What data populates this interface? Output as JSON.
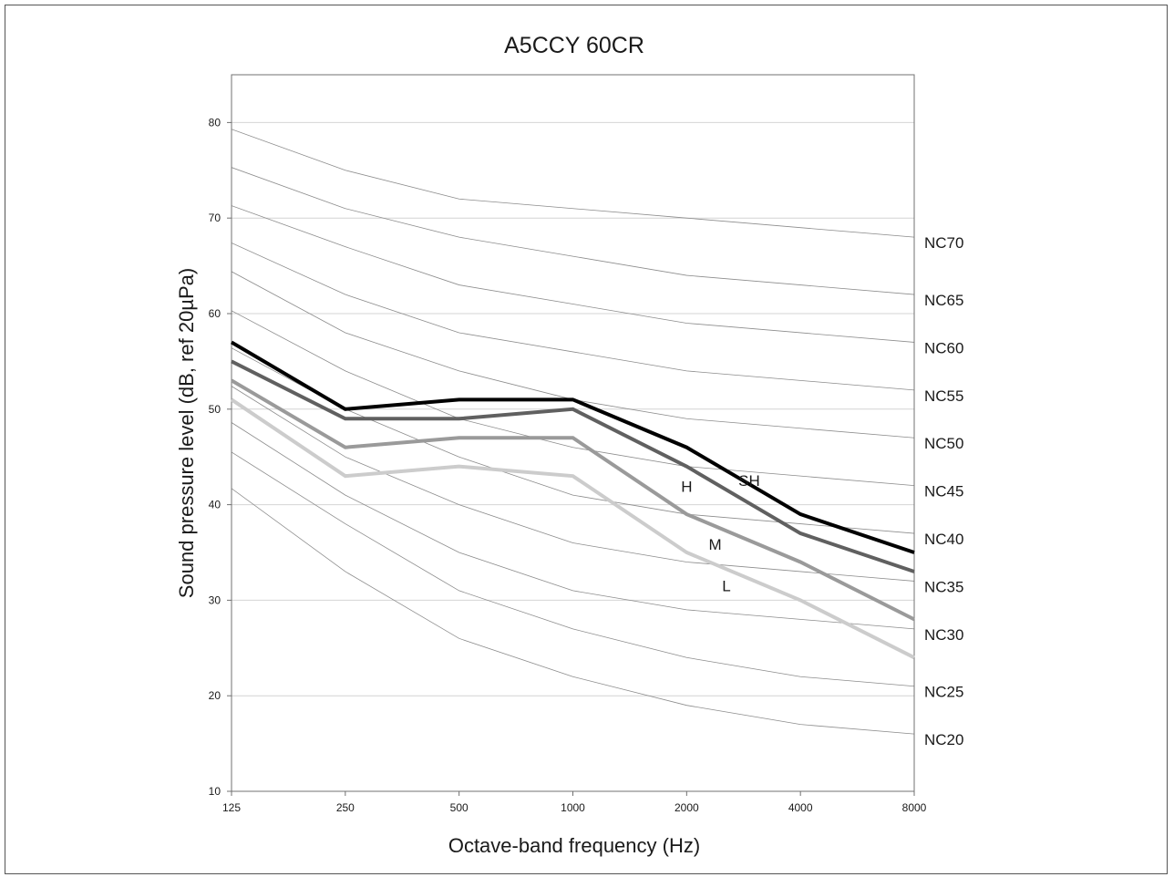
{
  "chart_data": {
    "type": "line",
    "title": "A5CCY 60CR",
    "xlabel": "Octave-band frequency (Hz)",
    "ylabel": "Sound pressure level (dB, ref 20µPa)",
    "x": [
      "125",
      "250",
      "500",
      "1000",
      "2000",
      "4000",
      "8000"
    ],
    "ylim": [
      10,
      85
    ],
    "yticks": [
      "10",
      "20",
      "30",
      "40",
      "50",
      "60",
      "70",
      "80"
    ],
    "grid": "horizontal",
    "nc_curves": [
      {
        "name": "NC20",
        "values": [
          41.7,
          33,
          26,
          22,
          19,
          17,
          16
        ]
      },
      {
        "name": "NC25",
        "values": [
          45.5,
          38,
          31,
          27,
          24,
          22,
          21
        ]
      },
      {
        "name": "NC30",
        "values": [
          48.6,
          41,
          35,
          31,
          29,
          28,
          27
        ]
      },
      {
        "name": "NC35",
        "values": [
          52.4,
          45,
          40,
          36,
          34,
          33,
          32
        ]
      },
      {
        "name": "NC40",
        "values": [
          56.4,
          50,
          45,
          41,
          39,
          38,
          37
        ]
      },
      {
        "name": "NC45",
        "values": [
          60.3,
          54,
          49,
          46,
          44,
          43,
          42
        ]
      },
      {
        "name": "NC50",
        "values": [
          64.4,
          58,
          54,
          51,
          49,
          48,
          47
        ]
      },
      {
        "name": "NC55",
        "values": [
          67.4,
          62,
          58,
          56,
          54,
          53,
          52
        ]
      },
      {
        "name": "NC60",
        "values": [
          71.3,
          67,
          63,
          61,
          59,
          58,
          57
        ]
      },
      {
        "name": "NC65",
        "values": [
          75.3,
          71,
          68,
          66,
          64,
          63,
          62
        ]
      },
      {
        "name": "NC70",
        "values": [
          79.3,
          75,
          72,
          71,
          70,
          69,
          68
        ]
      }
    ],
    "series": [
      {
        "name": "SH",
        "color": "#000000",
        "values": [
          57,
          50,
          51,
          51,
          46,
          39,
          35
        ]
      },
      {
        "name": "H",
        "color": "#606060",
        "values": [
          55,
          49,
          49,
          50,
          44,
          37,
          33
        ]
      },
      {
        "name": "M",
        "color": "#9a9a9a",
        "values": [
          53,
          46,
          47,
          47,
          39,
          34,
          28
        ]
      },
      {
        "name": "L",
        "color": "#cccccc",
        "values": [
          51,
          43,
          44,
          43,
          35,
          30,
          24
        ]
      }
    ]
  }
}
